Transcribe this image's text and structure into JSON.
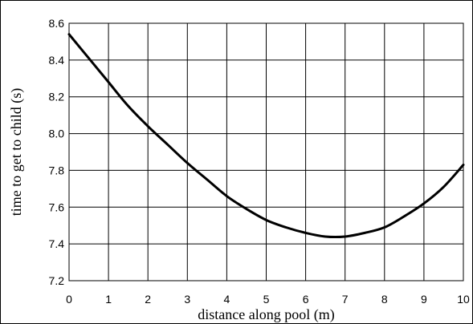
{
  "chart_data": {
    "type": "line",
    "title": "",
    "xlabel": "distance along pool (m)",
    "ylabel": "time to get to child (s)",
    "xlim": [
      0,
      10
    ],
    "ylim": [
      7.2,
      8.6
    ],
    "x_ticks": [
      "0",
      "1",
      "2",
      "3",
      "4",
      "5",
      "6",
      "7",
      "8",
      "9",
      "10"
    ],
    "y_ticks": [
      "7.2",
      "7.4",
      "7.6",
      "7.8",
      "8.0",
      "8.2",
      "8.4",
      "8.6"
    ],
    "grid": true,
    "legend": "none",
    "series": [
      {
        "color": "#000000",
        "x": [
          0,
          0.5,
          1,
          1.5,
          2,
          2.5,
          3,
          3.5,
          4,
          4.5,
          5,
          5.5,
          6,
          6.5,
          7,
          7.5,
          8,
          8.5,
          9,
          9.5,
          10
        ],
        "y": [
          8.54,
          8.41,
          8.28,
          8.15,
          8.04,
          7.94,
          7.84,
          7.75,
          7.66,
          7.59,
          7.53,
          7.49,
          7.46,
          7.44,
          7.44,
          7.46,
          7.49,
          7.55,
          7.62,
          7.71,
          7.83
        ]
      }
    ]
  }
}
